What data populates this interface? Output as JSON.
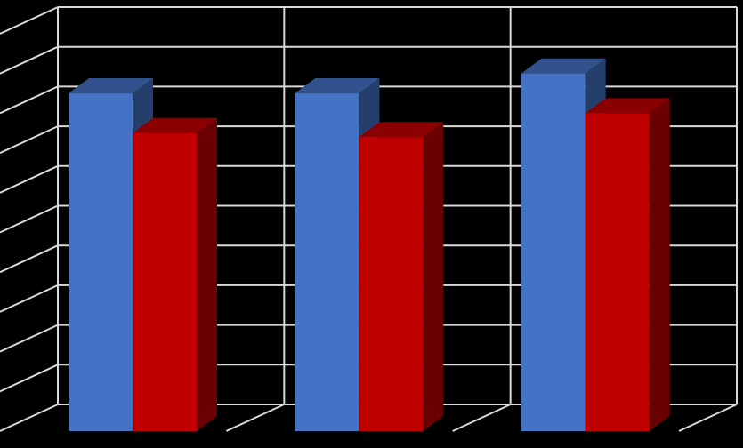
{
  "chart_data": {
    "type": "bar",
    "style": "3d-clustered-column",
    "categories": [
      "",
      "",
      ""
    ],
    "series": [
      {
        "values": [
          8.5,
          8.5,
          9.0
        ],
        "color": "#4472C4"
      },
      {
        "values": [
          7.5,
          7.4,
          8.0
        ],
        "color": "#C00000"
      }
    ],
    "title": "",
    "xlabel": "",
    "ylabel": "",
    "ylim": [
      0,
      10
    ],
    "major_gridlines": 10,
    "grid": true,
    "legend": "none",
    "background": "#000000",
    "gridline_color": "#D9D9D9"
  }
}
